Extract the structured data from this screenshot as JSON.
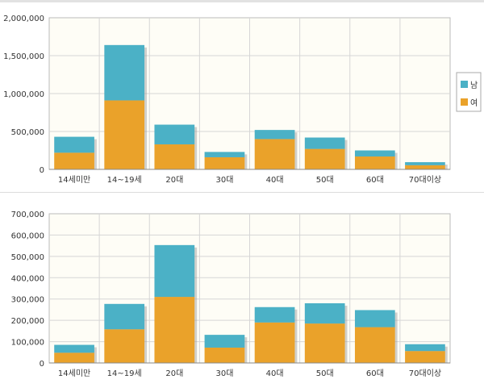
{
  "colors": {
    "male": "#4bb1c6",
    "female": "#eaa22a",
    "plot_bg": "#fefdf6",
    "grid": "#d6d6d6"
  },
  "legend": {
    "items": [
      {
        "label": "남",
        "color": "#4bb1c6"
      },
      {
        "label": "여",
        "color": "#eaa22a"
      }
    ]
  },
  "chart_data": [
    {
      "type": "bar",
      "stacked": true,
      "categories": [
        "14세미만",
        "14~19세",
        "20대",
        "30대",
        "40대",
        "50대",
        "60대",
        "70대이상"
      ],
      "series": [
        {
          "name": "여",
          "values": [
            220000,
            910000,
            330000,
            160000,
            400000,
            270000,
            170000,
            55000
          ]
        },
        {
          "name": "남",
          "values": [
            210000,
            730000,
            260000,
            70000,
            120000,
            150000,
            80000,
            40000
          ]
        }
      ],
      "ylim": [
        0,
        2000000
      ],
      "yticks": [
        0,
        500000,
        1000000,
        1500000,
        2000000
      ],
      "ytick_labels": [
        "0",
        "500,000",
        "1,000,000",
        "1,500,000",
        "2,000,000"
      ],
      "grid": true,
      "legend_position": "right"
    },
    {
      "type": "bar",
      "stacked": true,
      "categories": [
        "14세미만",
        "14~19세",
        "20대",
        "30대",
        "40대",
        "50대",
        "60대",
        "70대이상"
      ],
      "series": [
        {
          "name": "여",
          "values": [
            48000,
            158000,
            310000,
            72000,
            190000,
            185000,
            168000,
            56000
          ]
        },
        {
          "name": "남",
          "values": [
            37000,
            119000,
            243000,
            60000,
            72000,
            95000,
            80000,
            32000
          ]
        }
      ],
      "ylim": [
        0,
        700000
      ],
      "yticks": [
        0,
        100000,
        200000,
        300000,
        400000,
        500000,
        600000,
        700000
      ],
      "ytick_labels": [
        "0",
        "100,000",
        "200,000",
        "300,000",
        "400,000",
        "500,000",
        "600,000",
        "700,000"
      ],
      "grid": true
    }
  ]
}
